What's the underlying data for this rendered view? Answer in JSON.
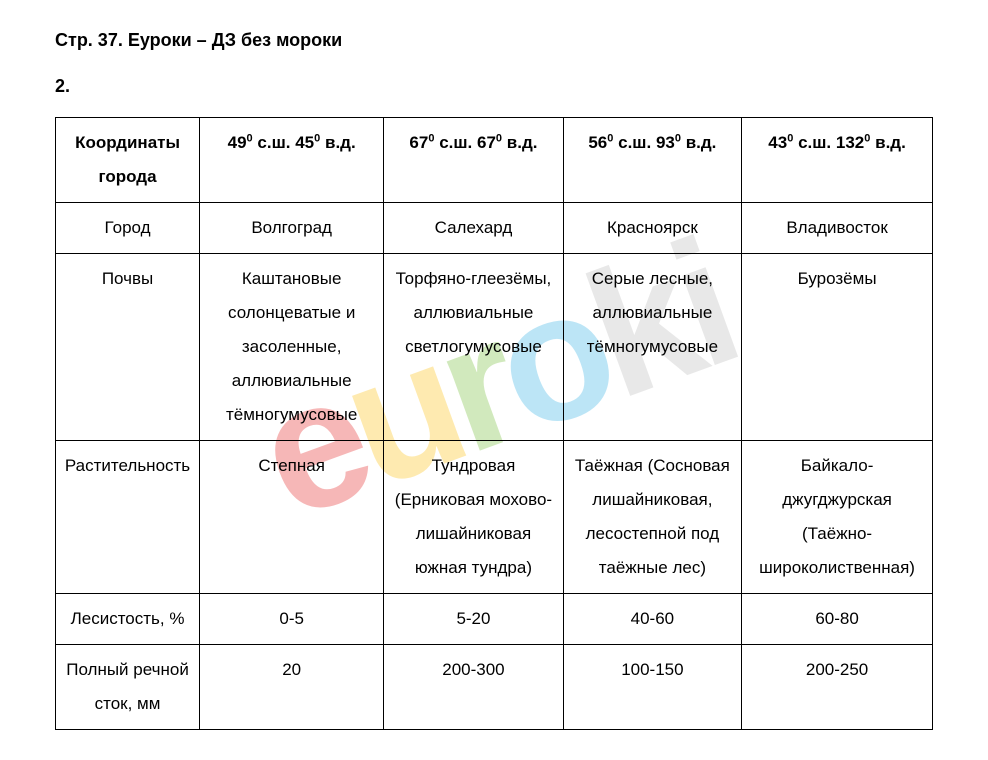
{
  "page_title": "Стр. 37. Еуроки – ДЗ без мороки",
  "exercise_number": "2.",
  "watermark": "euroki",
  "table": {
    "header": {
      "col0": "Координаты города",
      "col1_deg1": "49",
      "col1_unit1": "с.ш.",
      "col1_deg2": "45",
      "col1_unit2": "в.д.",
      "col2_deg1": "67",
      "col2_unit1": "с.ш.",
      "col2_deg2": "67",
      "col2_unit2": "в.д.",
      "col3_deg1": "56",
      "col3_unit1": "с.ш.",
      "col3_deg2": "93",
      "col3_unit2": "в.д.",
      "col4_deg1": "43",
      "col4_unit1": "с.ш.",
      "col4_deg2": "132",
      "col4_unit2": "в.д."
    },
    "rows": {
      "city": {
        "label": "Город",
        "c1": "Волгоград",
        "c2": "Салехард",
        "c3": "Красноярск",
        "c4": "Владивосток"
      },
      "soils": {
        "label": "Почвы",
        "c1": "Каштановые солонцеватые и засоленные, аллювиальные тёмногумусовые",
        "c2": "Торфяно-глеезёмы, аллювиальные светлогумусовые",
        "c3": "Серые лесные, аллювиальные тёмногумусовые",
        "c4": "Бурозёмы"
      },
      "vegetation": {
        "label": "Растительность",
        "c1": "Степная",
        "c2": "Тундровая (Ерниковая мохово-лишайниковая южная тундра)",
        "c3": "Таёжная (Сосновая лишайниковая, лесостепной под таёжные лес)",
        "c4": "Байкало-джугджурская (Таёжно-широколиственная)"
      },
      "forest": {
        "label": "Лесистость, %",
        "c1": "0-5",
        "c2": "5-20",
        "c3": "40-60",
        "c4": "60-80"
      },
      "runoff": {
        "label": "Полный речной сток, мм",
        "c1": "20",
        "c2": "200-300",
        "c3": "100-150",
        "c4": "200-250"
      }
    }
  }
}
